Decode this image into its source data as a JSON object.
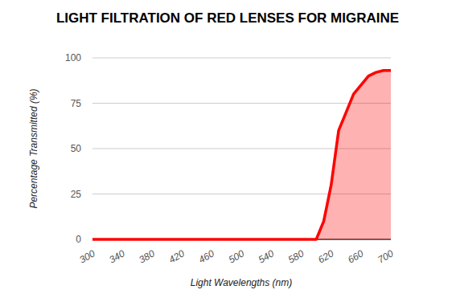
{
  "chart_data": {
    "type": "area",
    "title": "LIGHT FILTRATION OF RED LENSES FOR MIGRAINE",
    "x_label": "Light Wavelengths (nm)",
    "y_label": "Percentage Transmitted (%)",
    "x": [
      300,
      340,
      380,
      420,
      460,
      500,
      540,
      580,
      600,
      610,
      620,
      630,
      640,
      650,
      660,
      670,
      680,
      690,
      700
    ],
    "values": [
      0,
      0,
      0,
      0,
      0,
      0,
      0,
      0,
      0,
      10,
      30,
      60,
      70,
      80,
      85,
      90,
      92,
      93,
      93
    ],
    "color": "#ff0000",
    "xlim": [
      300,
      700
    ],
    "ylim": [
      0,
      100
    ],
    "xticks": [
      300,
      340,
      380,
      420,
      460,
      500,
      540,
      580,
      620,
      660,
      700
    ],
    "yticks": [
      0,
      25,
      50,
      75,
      100
    ],
    "grid": true
  }
}
